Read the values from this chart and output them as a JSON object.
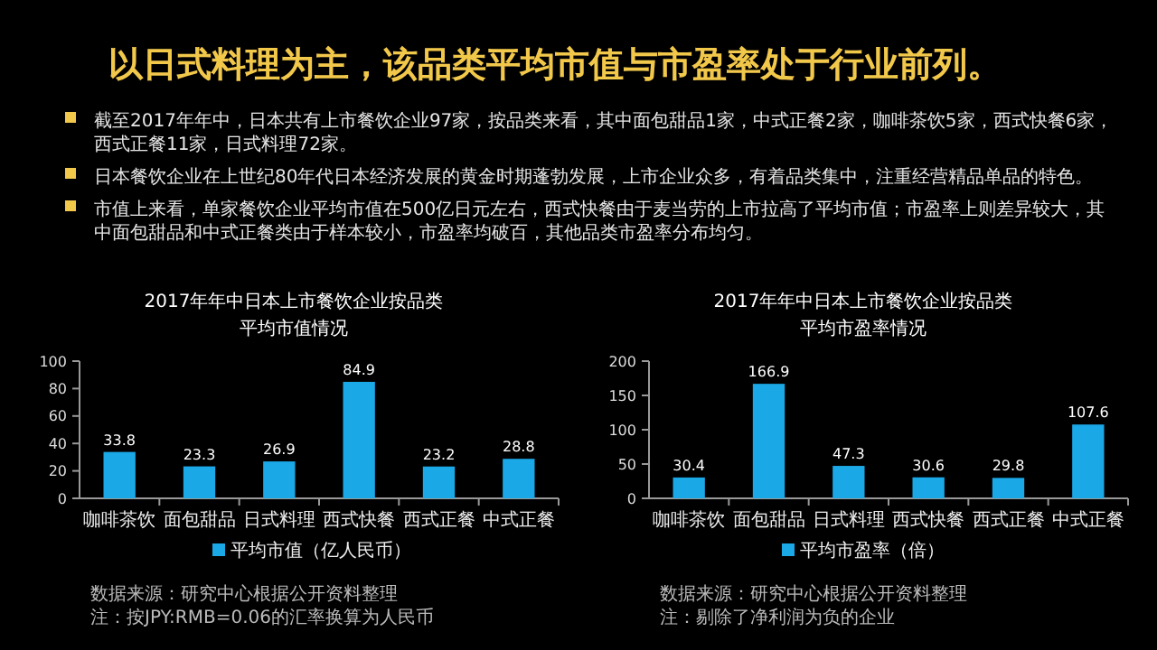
{
  "chart_data": [
    {
      "type": "other",
      "title": "以日式料理为主，该品类平均市值与市盈率处于行业前列。",
      "annotations": [
        "截至2017年年中，日本共有上市餐饮企业97家，按品类来看，其中面包甜品1家，中式正餐2家，咖啡茶饮5家，西式快餐6家，西式正餐11家，日式料理72家。",
        "日本餐饮企业在上世纪80年代日本经济发展的黄金时期蓬勃发展，上市企业众多，有着品类集中，注重经营精品单品的特色。",
        "市值上来看，单家餐饮企业平均市值在500亿日元左右，西式快餐由于麦当劳的上市拉高了平均市值；市盈率上则差异较大，其中面包甜品和中式正餐类由于样本较小，市盈率均破百，其他品类市盈率分布均匀。"
      ]
    },
    {
      "type": "bar",
      "title": "2017年年中日本上市餐饮企业按品类",
      "subtitle": "平均市值情况",
      "categories": [
        "咖啡茶饮",
        "面包甜品",
        "日式料理",
        "西式快餐",
        "西式正餐",
        "中式正餐"
      ],
      "series": [
        {
          "name": "平均市值（亿人民币）",
          "color": "#1ba8e6",
          "values": [
            33.8,
            23.3,
            26.9,
            84.9,
            23.2,
            28.8
          ]
        }
      ],
      "ylim": [
        0,
        100
      ],
      "yticks": [
        0,
        20,
        40,
        60,
        80,
        100
      ],
      "data_labels": true,
      "legend": "bottom",
      "annotations": [
        "数据来源：研究中心根据公开资料整理",
        "注：按JPY:RMB=0.06的汇率换算为人民币"
      ]
    },
    {
      "type": "bar",
      "title": "2017年年中日本上市餐饮企业按品类",
      "subtitle": "平均市盈率情况",
      "categories": [
        "咖啡茶饮",
        "面包甜品",
        "日式料理",
        "西式快餐",
        "西式正餐",
        "中式正餐"
      ],
      "series": [
        {
          "name": "平均市盈率（倍）",
          "color": "#1ba8e6",
          "values": [
            30.4,
            166.9,
            47.3,
            30.6,
            29.8,
            107.6
          ]
        }
      ],
      "ylim": [
        0,
        200
      ],
      "yticks": [
        0,
        50,
        100,
        150,
        200
      ],
      "data_labels": true,
      "legend": "bottom",
      "annotations": [
        "数据来源：研究中心根据公开资料整理",
        "注：剔除了净利润为负的企业"
      ]
    }
  ]
}
